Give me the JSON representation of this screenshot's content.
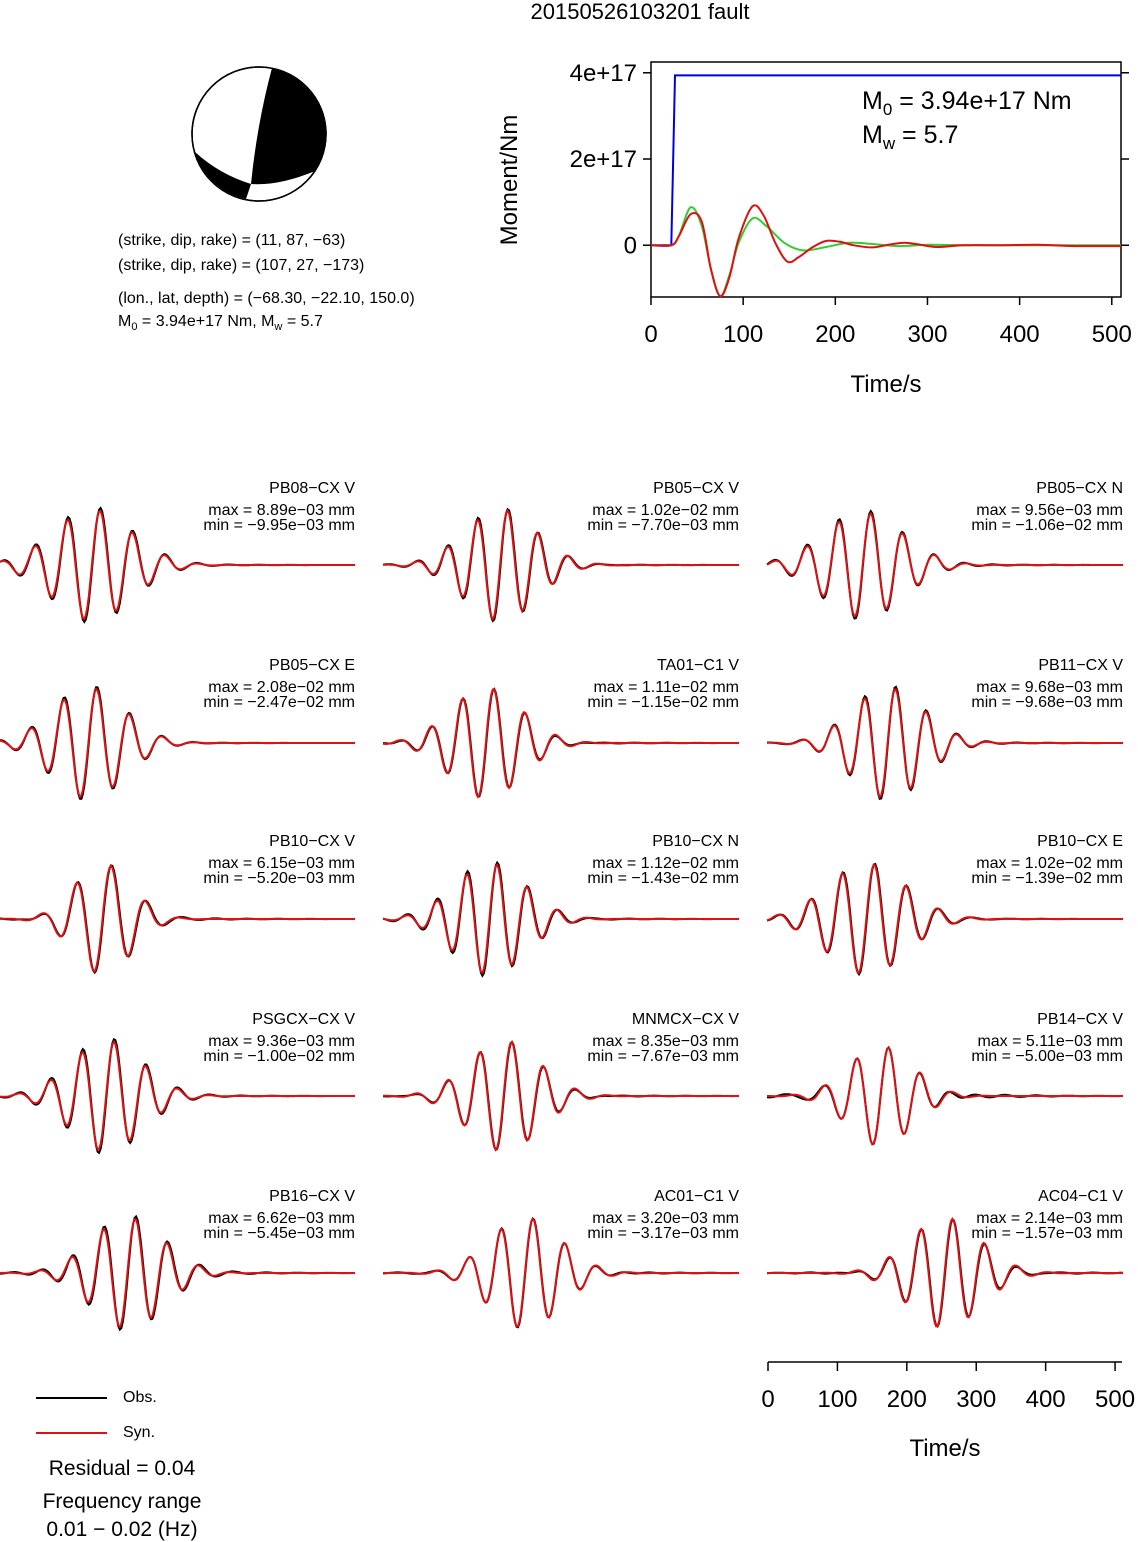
{
  "title": "20150526103201 fault",
  "beachball": {
    "label": "focal-mechanism"
  },
  "info": {
    "line1": "(strike, dip, rake) = (11, 87, −63)",
    "line2": "(strike, dip, rake) = (107, 27, −173)",
    "line3": "(lon., lat, depth) = (−68.30, −22.10, 150.0)",
    "m0_prefix": "M",
    "m0_sub": "0",
    "m0_value": " = 3.94e+17 Nm, M",
    "mw_sub": "w",
    "mw_value": " = 5.7"
  },
  "stf_chart": {
    "type": "line",
    "ylabel": "Moment/Nm",
    "xlabel": "Time/s",
    "xlim": [
      0,
      510
    ],
    "ylim": [
      -1.2e+17,
      4.25e+17
    ],
    "xticks": [
      "0",
      "100",
      "200",
      "300",
      "400",
      "500"
    ],
    "xtick_values": [
      0,
      100,
      200,
      300,
      400,
      500
    ],
    "yticks": [
      "0",
      "2e+17",
      "4e+17"
    ],
    "ytick_values": [
      0,
      2e+17,
      4e+17
    ],
    "annotation_m0": "M0 = 3.94e+17 Nm",
    "annotation_mw": "Mw = 5.7",
    "ann": {
      "m_letter": "M",
      "m0_sub": "0",
      "m0_rest": " = 3.94e+17 Nm",
      "mw_sub": "w",
      "mw_rest": " = 5.7"
    },
    "series": [
      {
        "color": "#0000dd",
        "x": [
          0,
          20,
          22,
          26,
          30,
          510
        ],
        "y": [
          0,
          0,
          0,
          3.94e+17,
          3.94e+17,
          3.94e+17
        ]
      },
      {
        "color": "#33cc33",
        "x": [
          0,
          22,
          30,
          43,
          55,
          65,
          75,
          85,
          95,
          110,
          125,
          145,
          165,
          190,
          215,
          240,
          270,
          300,
          350,
          400,
          450,
          510
        ],
        "y": [
          0,
          0,
          2e+16,
          8.8e+16,
          4.5e+16,
          -5.5e+16,
          -1.18e+17,
          -7e+16,
          5000000000000000.0,
          6.2e+16,
          4.5e+16,
          5000000000000000.0,
          -1.2e+16,
          -4000000000000000.0,
          6000000000000000.0,
          3000000000000000.0,
          -2000000000000000.0,
          1000000000000000.0,
          0.0,
          0.0,
          0.0,
          0.0
        ]
      },
      {
        "color": "#dd1111",
        "x": [
          0,
          22,
          30,
          43,
          55,
          65,
          75,
          85,
          95,
          110,
          122,
          135,
          148,
          160,
          175,
          190,
          205,
          220,
          240,
          260,
          275,
          290,
          310,
          340,
          380,
          420,
          460,
          510
        ],
        "y": [
          0,
          0,
          2e+16,
          7.2e+16,
          5.5e+16,
          -5.5e+16,
          -1.18e+17,
          -7.5e+16,
          1.5e+16,
          9e+16,
          7e+16,
          5000000000000000.0,
          -3.8e+16,
          -2.8e+16,
          -5000000000000000.0,
          1e+16,
          8000000000000000.0,
          0.0,
          -5000000000000000.0,
          2000000000000000.0,
          6000000000000000.0,
          2000000000000000.0,
          -4000000000000000.0,
          0.0,
          0.0,
          1000000000000000.0,
          -2000000000000000.0,
          -2000000000000000.0
        ]
      }
    ]
  },
  "stations": [
    {
      "name": "PB08−CX V",
      "max": "max = 8.89e−03 mm",
      "min": "min = −9.95e−03 mm"
    },
    {
      "name": "PB05−CX V",
      "max": "max = 1.02e−02 mm",
      "min": "min = −7.70e−03 mm"
    },
    {
      "name": "PB05−CX N",
      "max": "max = 9.56e−03 mm",
      "min": "min = −1.06e−02 mm"
    },
    {
      "name": "PB05−CX E",
      "max": "max = 2.08e−02 mm",
      "min": "min = −2.47e−02 mm"
    },
    {
      "name": "TA01−C1 V",
      "max": "max = 1.11e−02 mm",
      "min": "min = −1.15e−02 mm"
    },
    {
      "name": "PB11−CX V",
      "max": "max = 9.68e−03 mm",
      "min": "min = −9.68e−03 mm"
    },
    {
      "name": "PB10−CX V",
      "max": "max = 6.15e−03 mm",
      "min": "min = −5.20e−03 mm"
    },
    {
      "name": "PB10−CX N",
      "max": "max = 1.12e−02 mm",
      "min": "min = −1.43e−02 mm"
    },
    {
      "name": "PB10−CX E",
      "max": "max = 1.02e−02 mm",
      "min": "min = −1.39e−02 mm"
    },
    {
      "name": "PSGCX−CX V",
      "max": "max = 9.36e−03 mm",
      "min": "min = −1.00e−02 mm"
    },
    {
      "name": "MNMCX−CX V",
      "max": "max = 8.35e−03 mm",
      "min": "min = −7.67e−03 mm"
    },
    {
      "name": "PB14−CX V",
      "max": "max = 5.11e−03 mm",
      "min": "min = −5.00e−03 mm"
    },
    {
      "name": "PB16−CX V",
      "max": "max = 6.62e−03 mm",
      "min": "min = −5.45e−03 mm"
    },
    {
      "name": "AC01−C1 V",
      "max": "max = 3.20e−03 mm",
      "min": "min = −3.17e−03 mm"
    },
    {
      "name": "AC04−C1 V",
      "max": "max = 2.14e−03 mm",
      "min": "min = −1.57e−03 mm"
    }
  ],
  "trace_axis": {
    "xlabel": "Time/s",
    "xlim": [
      0,
      510
    ],
    "xticks": [
      "0",
      "100",
      "200",
      "300",
      "400",
      "500"
    ],
    "xtick_values": [
      0,
      100,
      200,
      300,
      400,
      500
    ]
  },
  "legend": {
    "obs": "Obs.",
    "syn": "Syn.",
    "obs_color": "#000000",
    "syn_color": "#dd1111"
  },
  "residual": "Residual = 0.04",
  "freq_label": "Frequency range",
  "freq_value": "0.01 − 0.02 (Hz)"
}
